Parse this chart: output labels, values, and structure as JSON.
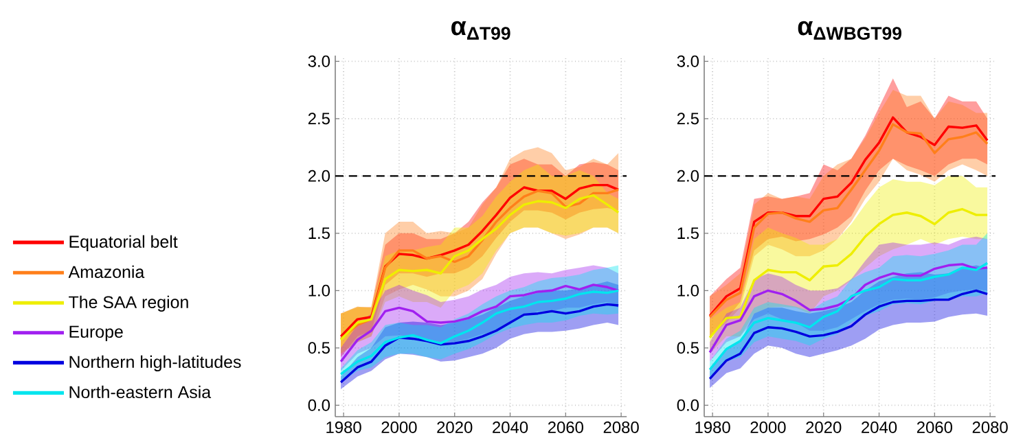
{
  "chart_data": [
    {
      "type": "line",
      "title": "α$_{ΔT99}$",
      "xlim": [
        1977,
        2082
      ],
      "ylim": [
        -0.1,
        3.05
      ],
      "xticks": [
        1980,
        2000,
        2020,
        2040,
        2060,
        2080
      ],
      "yticks": [
        {
          "value": 0,
          "label": "0.0"
        },
        {
          "value": 0.5,
          "label": "0.5"
        },
        {
          "value": 1,
          "label": "1.0"
        },
        {
          "value": 1.5,
          "label": "1.5"
        },
        {
          "value": 2,
          "label": "2.0"
        },
        {
          "value": 2.5,
          "label": "2.5"
        },
        {
          "value": 3,
          "label": "3.0"
        }
      ],
      "grid": true,
      "legend": "left",
      "ref_lines": [
        {
          "axis": "y",
          "value": 2.0,
          "color": "#000000",
          "line_style": "dashed"
        }
      ],
      "x": [
        1979,
        1985,
        1990,
        1995,
        2000,
        2005,
        2010,
        2015,
        2020,
        2025,
        2030,
        2035,
        2040,
        2045,
        2050,
        2055,
        2060,
        2065,
        2070,
        2075,
        2079
      ],
      "series": [
        {
          "name": "Equatorial belt",
          "color": "#ff0000",
          "values": [
            0.6,
            0.75,
            0.77,
            1.21,
            1.32,
            1.31,
            1.28,
            1.31,
            1.35,
            1.4,
            1.52,
            1.66,
            1.81,
            1.9,
            1.87,
            1.87,
            1.8,
            1.89,
            1.92,
            1.92,
            1.88
          ],
          "upper": [
            0.8,
            0.86,
            0.85,
            1.4,
            1.5,
            1.5,
            1.45,
            1.45,
            1.5,
            1.6,
            1.77,
            1.9,
            2.1,
            2.15,
            2.1,
            2.1,
            2.0,
            2.1,
            2.12,
            2.1,
            2.05
          ],
          "lower": [
            0.42,
            0.6,
            0.65,
            1.05,
            1.15,
            1.15,
            1.12,
            1.15,
            1.15,
            1.2,
            1.3,
            1.46,
            1.6,
            1.7,
            1.7,
            1.68,
            1.62,
            1.68,
            1.71,
            1.72,
            1.7
          ]
        },
        {
          "name": "Amazonia",
          "color": "#ff7f1a",
          "values": [
            0.58,
            0.7,
            0.75,
            1.2,
            1.35,
            1.35,
            1.28,
            1.3,
            1.25,
            1.3,
            1.44,
            1.6,
            1.72,
            1.82,
            1.87,
            1.85,
            1.73,
            1.76,
            1.85,
            1.85,
            1.88
          ],
          "upper": [
            0.8,
            0.85,
            0.86,
            1.5,
            1.6,
            1.6,
            1.5,
            1.52,
            1.5,
            1.55,
            1.75,
            1.9,
            2.15,
            2.22,
            2.25,
            2.2,
            2.05,
            2.08,
            2.15,
            2.1,
            2.2
          ],
          "lower": [
            0.45,
            0.55,
            0.6,
            0.95,
            1.01,
            1.05,
            1.01,
            0.95,
            0.95,
            1.0,
            1.1,
            1.32,
            1.5,
            1.55,
            1.55,
            1.5,
            1.45,
            1.49,
            1.55,
            1.55,
            1.5
          ]
        },
        {
          "name": "The SAA region",
          "color": "#eeee00",
          "values": [
            0.57,
            0.72,
            0.75,
            1.1,
            1.18,
            1.17,
            1.18,
            1.15,
            1.3,
            1.35,
            1.45,
            1.54,
            1.66,
            1.75,
            1.78,
            1.77,
            1.72,
            1.8,
            1.83,
            1.75,
            1.68
          ],
          "upper": [
            0.8,
            0.86,
            0.85,
            1.3,
            1.35,
            1.35,
            1.38,
            1.4,
            1.55,
            1.55,
            1.65,
            1.82,
            1.95,
            2.05,
            2.1,
            2.0,
            2.0,
            2.05,
            2.0,
            1.85,
            1.8
          ],
          "lower": [
            0.45,
            0.55,
            0.6,
            0.9,
            0.95,
            0.9,
            0.9,
            0.85,
            1.0,
            1.05,
            1.15,
            1.35,
            1.5,
            1.55,
            1.55,
            1.5,
            1.48,
            1.5,
            1.55,
            1.55,
            1.5
          ]
        },
        {
          "name": "Europe",
          "color": "#a020f0",
          "values": [
            0.38,
            0.57,
            0.65,
            0.82,
            0.85,
            0.82,
            0.73,
            0.72,
            0.73,
            0.76,
            0.82,
            0.86,
            0.95,
            0.96,
            0.99,
            1.0,
            1.04,
            1.01,
            1.05,
            1.03,
            1.0
          ],
          "upper": [
            0.5,
            0.7,
            0.8,
            1.0,
            1.05,
            1.0,
            0.96,
            0.9,
            0.92,
            0.95,
            1.01,
            1.05,
            1.12,
            1.15,
            1.16,
            1.15,
            1.18,
            1.2,
            1.22,
            1.2,
            1.15
          ],
          "lower": [
            0.3,
            0.45,
            0.5,
            0.6,
            0.61,
            0.6,
            0.58,
            0.55,
            0.55,
            0.58,
            0.62,
            0.65,
            0.72,
            0.78,
            0.82,
            0.82,
            0.85,
            0.85,
            0.88,
            0.9,
            0.85
          ]
        },
        {
          "name": "Northern high-latitudes",
          "color": "#0000e0",
          "values": [
            0.2,
            0.33,
            0.38,
            0.52,
            0.59,
            0.58,
            0.56,
            0.53,
            0.54,
            0.56,
            0.6,
            0.65,
            0.72,
            0.79,
            0.8,
            0.82,
            0.8,
            0.82,
            0.86,
            0.88,
            0.87
          ],
          "upper": [
            0.25,
            0.42,
            0.5,
            0.68,
            0.72,
            0.73,
            0.72,
            0.7,
            0.72,
            0.75,
            0.79,
            0.85,
            0.91,
            0.95,
            0.98,
            1.0,
            1.0,
            1.02,
            1.05,
            1.08,
            1.05
          ],
          "lower": [
            0.14,
            0.25,
            0.3,
            0.4,
            0.45,
            0.44,
            0.42,
            0.38,
            0.39,
            0.42,
            0.45,
            0.5,
            0.58,
            0.62,
            0.64,
            0.64,
            0.65,
            0.67,
            0.7,
            0.72,
            0.7
          ]
        },
        {
          "name": "North-eastern Asia",
          "color": "#00e5ee",
          "values": [
            0.27,
            0.38,
            0.43,
            0.55,
            0.59,
            0.61,
            0.57,
            0.54,
            0.6,
            0.65,
            0.72,
            0.8,
            0.84,
            0.86,
            0.9,
            0.91,
            0.93,
            0.97,
            0.99,
            0.98,
            1.0
          ],
          "upper": [
            0.32,
            0.48,
            0.55,
            0.7,
            0.72,
            0.7,
            0.7,
            0.68,
            0.75,
            0.8,
            0.88,
            0.95,
            1.0,
            1.03,
            1.08,
            1.11,
            1.12,
            1.14,
            1.18,
            1.2,
            1.22
          ],
          "lower": [
            0.2,
            0.3,
            0.33,
            0.42,
            0.45,
            0.45,
            0.42,
            0.4,
            0.45,
            0.49,
            0.55,
            0.62,
            0.67,
            0.7,
            0.72,
            0.72,
            0.74,
            0.78,
            0.8,
            0.79,
            0.8
          ]
        }
      ]
    },
    {
      "type": "line",
      "title": "α$_{ΔWBGT99}$",
      "xlim": [
        1977,
        2082
      ],
      "ylim": [
        -0.1,
        3.05
      ],
      "xticks": [
        1980,
        2000,
        2020,
        2040,
        2060,
        2080
      ],
      "yticks": [
        {
          "value": 0,
          "label": "0.0"
        },
        {
          "value": 0.5,
          "label": "0.5"
        },
        {
          "value": 1,
          "label": "1.0"
        },
        {
          "value": 1.5,
          "label": "1.5"
        },
        {
          "value": 2,
          "label": "2.0"
        },
        {
          "value": 2.5,
          "label": "2.5"
        },
        {
          "value": 3,
          "label": "3.0"
        }
      ],
      "grid": true,
      "ref_lines": [
        {
          "axis": "y",
          "value": 2.0,
          "color": "#000000",
          "line_style": "dashed"
        }
      ],
      "x": [
        1979,
        1985,
        1990,
        1995,
        2000,
        2005,
        2010,
        2015,
        2020,
        2025,
        2030,
        2035,
        2040,
        2045,
        2050,
        2055,
        2060,
        2065,
        2070,
        2075,
        2079
      ],
      "series": [
        {
          "color": "#ff0000",
          "values": [
            0.78,
            0.95,
            1.02,
            1.6,
            1.68,
            1.68,
            1.65,
            1.65,
            1.8,
            1.82,
            1.94,
            2.14,
            2.29,
            2.51,
            2.38,
            2.34,
            2.27,
            2.43,
            2.42,
            2.44,
            2.31
          ],
          "upper": [
            0.95,
            1.1,
            1.2,
            1.8,
            1.82,
            1.8,
            1.82,
            1.85,
            2.1,
            2.05,
            2.15,
            2.35,
            2.6,
            2.85,
            2.6,
            2.65,
            2.5,
            2.7,
            2.65,
            2.65,
            2.5
          ],
          "lower": [
            0.6,
            0.75,
            0.9,
            1.35,
            1.45,
            1.47,
            1.43,
            1.45,
            1.49,
            1.55,
            1.65,
            1.87,
            2.05,
            2.15,
            2.09,
            2.05,
            2.0,
            2.1,
            2.15,
            2.15,
            2.1
          ]
        },
        {
          "color": "#ff7f1a",
          "values": [
            0.77,
            0.92,
            0.98,
            1.55,
            1.67,
            1.68,
            1.63,
            1.6,
            1.7,
            1.72,
            1.88,
            2.05,
            2.22,
            2.45,
            2.38,
            2.37,
            2.2,
            2.32,
            2.34,
            2.38,
            2.28
          ],
          "upper": [
            0.95,
            1.05,
            1.15,
            1.75,
            1.85,
            1.8,
            1.82,
            1.8,
            2.0,
            2.1,
            2.15,
            2.33,
            2.55,
            2.75,
            2.7,
            2.7,
            2.5,
            2.65,
            2.62,
            2.55,
            2.55
          ],
          "lower": [
            0.6,
            0.72,
            0.85,
            1.3,
            1.4,
            1.36,
            1.3,
            1.3,
            1.35,
            1.45,
            1.6,
            1.8,
            1.95,
            2.15,
            2.05,
            2.01,
            1.95,
            2.05,
            2.1,
            2.05,
            2.0
          ]
        },
        {
          "color": "#eeee00",
          "values": [
            0.59,
            0.76,
            0.77,
            1.09,
            1.18,
            1.16,
            1.16,
            1.09,
            1.21,
            1.22,
            1.32,
            1.47,
            1.58,
            1.66,
            1.68,
            1.65,
            1.58,
            1.68,
            1.71,
            1.66,
            1.66
          ],
          "upper": [
            0.75,
            0.85,
            0.9,
            1.45,
            1.55,
            1.5,
            1.46,
            1.4,
            1.4,
            1.45,
            1.58,
            1.75,
            1.9,
            1.97,
            1.95,
            1.95,
            1.92,
            2.0,
            2.0,
            1.9,
            1.9
          ],
          "lower": [
            0.45,
            0.6,
            0.6,
            0.8,
            0.85,
            0.86,
            0.85,
            0.8,
            0.95,
            1.0,
            1.09,
            1.2,
            1.3,
            1.36,
            1.4,
            1.45,
            1.4,
            1.45,
            1.47,
            1.45,
            1.45
          ]
        },
        {
          "color": "#a020f0",
          "values": [
            0.46,
            0.7,
            0.74,
            0.95,
            1.0,
            0.97,
            0.91,
            0.83,
            0.84,
            0.87,
            0.93,
            1.05,
            1.11,
            1.15,
            1.13,
            1.13,
            1.19,
            1.22,
            1.23,
            1.19,
            1.2
          ],
          "upper": [
            0.55,
            0.8,
            0.85,
            1.1,
            1.15,
            1.12,
            1.05,
            1.0,
            1.0,
            1.02,
            1.1,
            1.26,
            1.4,
            1.42,
            1.4,
            1.4,
            1.42,
            1.4,
            1.45,
            1.47,
            1.45
          ],
          "lower": [
            0.38,
            0.55,
            0.6,
            0.75,
            0.8,
            0.75,
            0.72,
            0.65,
            0.65,
            0.68,
            0.75,
            0.82,
            0.88,
            0.92,
            0.93,
            0.92,
            0.94,
            0.98,
            1.0,
            1.01,
            1.0
          ]
        },
        {
          "color": "#0000e0",
          "values": [
            0.23,
            0.39,
            0.45,
            0.63,
            0.68,
            0.67,
            0.64,
            0.6,
            0.61,
            0.64,
            0.69,
            0.79,
            0.86,
            0.9,
            0.91,
            0.91,
            0.92,
            0.92,
            0.97,
            1.0,
            0.97
          ],
          "upper": [
            0.3,
            0.5,
            0.55,
            0.8,
            0.85,
            0.85,
            0.82,
            0.8,
            0.82,
            0.85,
            0.9,
            1.0,
            1.08,
            1.12,
            1.15,
            1.16,
            1.14,
            1.15,
            1.2,
            1.22,
            1.2
          ],
          "lower": [
            0.15,
            0.28,
            0.32,
            0.45,
            0.52,
            0.5,
            0.45,
            0.42,
            0.45,
            0.48,
            0.52,
            0.58,
            0.66,
            0.7,
            0.72,
            0.72,
            0.73,
            0.77,
            0.79,
            0.8,
            0.78
          ]
        },
        {
          "color": "#00e5ee",
          "values": [
            0.31,
            0.49,
            0.56,
            0.72,
            0.76,
            0.74,
            0.72,
            0.68,
            0.77,
            0.82,
            0.95,
            1.0,
            1.03,
            1.1,
            1.09,
            1.09,
            1.12,
            1.14,
            1.2,
            1.18,
            1.24
          ],
          "upper": [
            0.38,
            0.58,
            0.65,
            0.85,
            0.9,
            0.88,
            0.86,
            0.82,
            0.9,
            0.95,
            1.1,
            1.16,
            1.2,
            1.3,
            1.31,
            1.3,
            1.32,
            1.35,
            1.4,
            1.4,
            1.5
          ],
          "lower": [
            0.22,
            0.38,
            0.42,
            0.55,
            0.6,
            0.58,
            0.56,
            0.52,
            0.58,
            0.62,
            0.72,
            0.78,
            0.82,
            0.88,
            0.89,
            0.88,
            0.91,
            0.92,
            0.95,
            0.95,
            0.98
          ]
        }
      ]
    }
  ]
}
